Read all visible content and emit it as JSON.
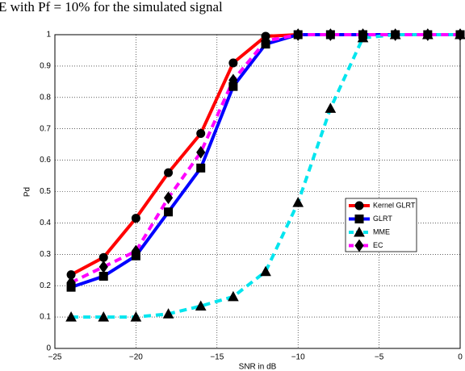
{
  "chart_data": {
    "type": "line",
    "title": "E with Pf = 10% for the simulated signal",
    "xlabel": "SNR in dB",
    "ylabel": "Pd",
    "x": [
      -24,
      -22,
      -20,
      -18,
      -16,
      -14,
      -12,
      -10,
      -8,
      -6,
      -4,
      -2,
      0
    ],
    "series": [
      {
        "name": "Kernel GLRT",
        "color": "#ff0000",
        "marker": "circle",
        "dashed": false,
        "values": [
          0.235,
          0.29,
          0.415,
          0.56,
          0.685,
          0.91,
          0.995,
          1,
          1,
          1,
          1,
          1,
          1
        ]
      },
      {
        "name": "GLRT",
        "color": "#0000ff",
        "marker": "square",
        "dashed": false,
        "values": [
          0.195,
          0.23,
          0.295,
          0.435,
          0.575,
          0.835,
          0.97,
          1,
          1,
          1,
          1,
          1,
          1
        ]
      },
      {
        "name": "MME",
        "color": "#00e5ee",
        "marker": "triangle",
        "dashed": true,
        "values": [
          0.1,
          0.1,
          0.1,
          0.11,
          0.135,
          0.165,
          0.245,
          0.465,
          0.765,
          0.99,
          1,
          1,
          1
        ]
      },
      {
        "name": "EC",
        "color": "#ff00ff",
        "marker": "diamond",
        "dashed": true,
        "values": [
          0.21,
          0.26,
          0.31,
          0.48,
          0.625,
          0.855,
          0.98,
          1,
          1,
          1,
          1,
          1,
          1
        ]
      }
    ],
    "xlim": [
      -25,
      0
    ],
    "xticks": [
      {
        "value": -25,
        "label": "−25"
      },
      {
        "value": -20,
        "label": "−20"
      },
      {
        "value": -15,
        "label": "−15"
      },
      {
        "value": -10,
        "label": "−10"
      },
      {
        "value": -5,
        "label": "−5"
      },
      0
    ],
    "ylim": [
      0,
      1
    ],
    "yticks": [
      0,
      0.1,
      0.2,
      0.3,
      0.4,
      0.5,
      0.6,
      0.7,
      0.8,
      0.9,
      1
    ],
    "grid": true,
    "legend": "right"
  }
}
